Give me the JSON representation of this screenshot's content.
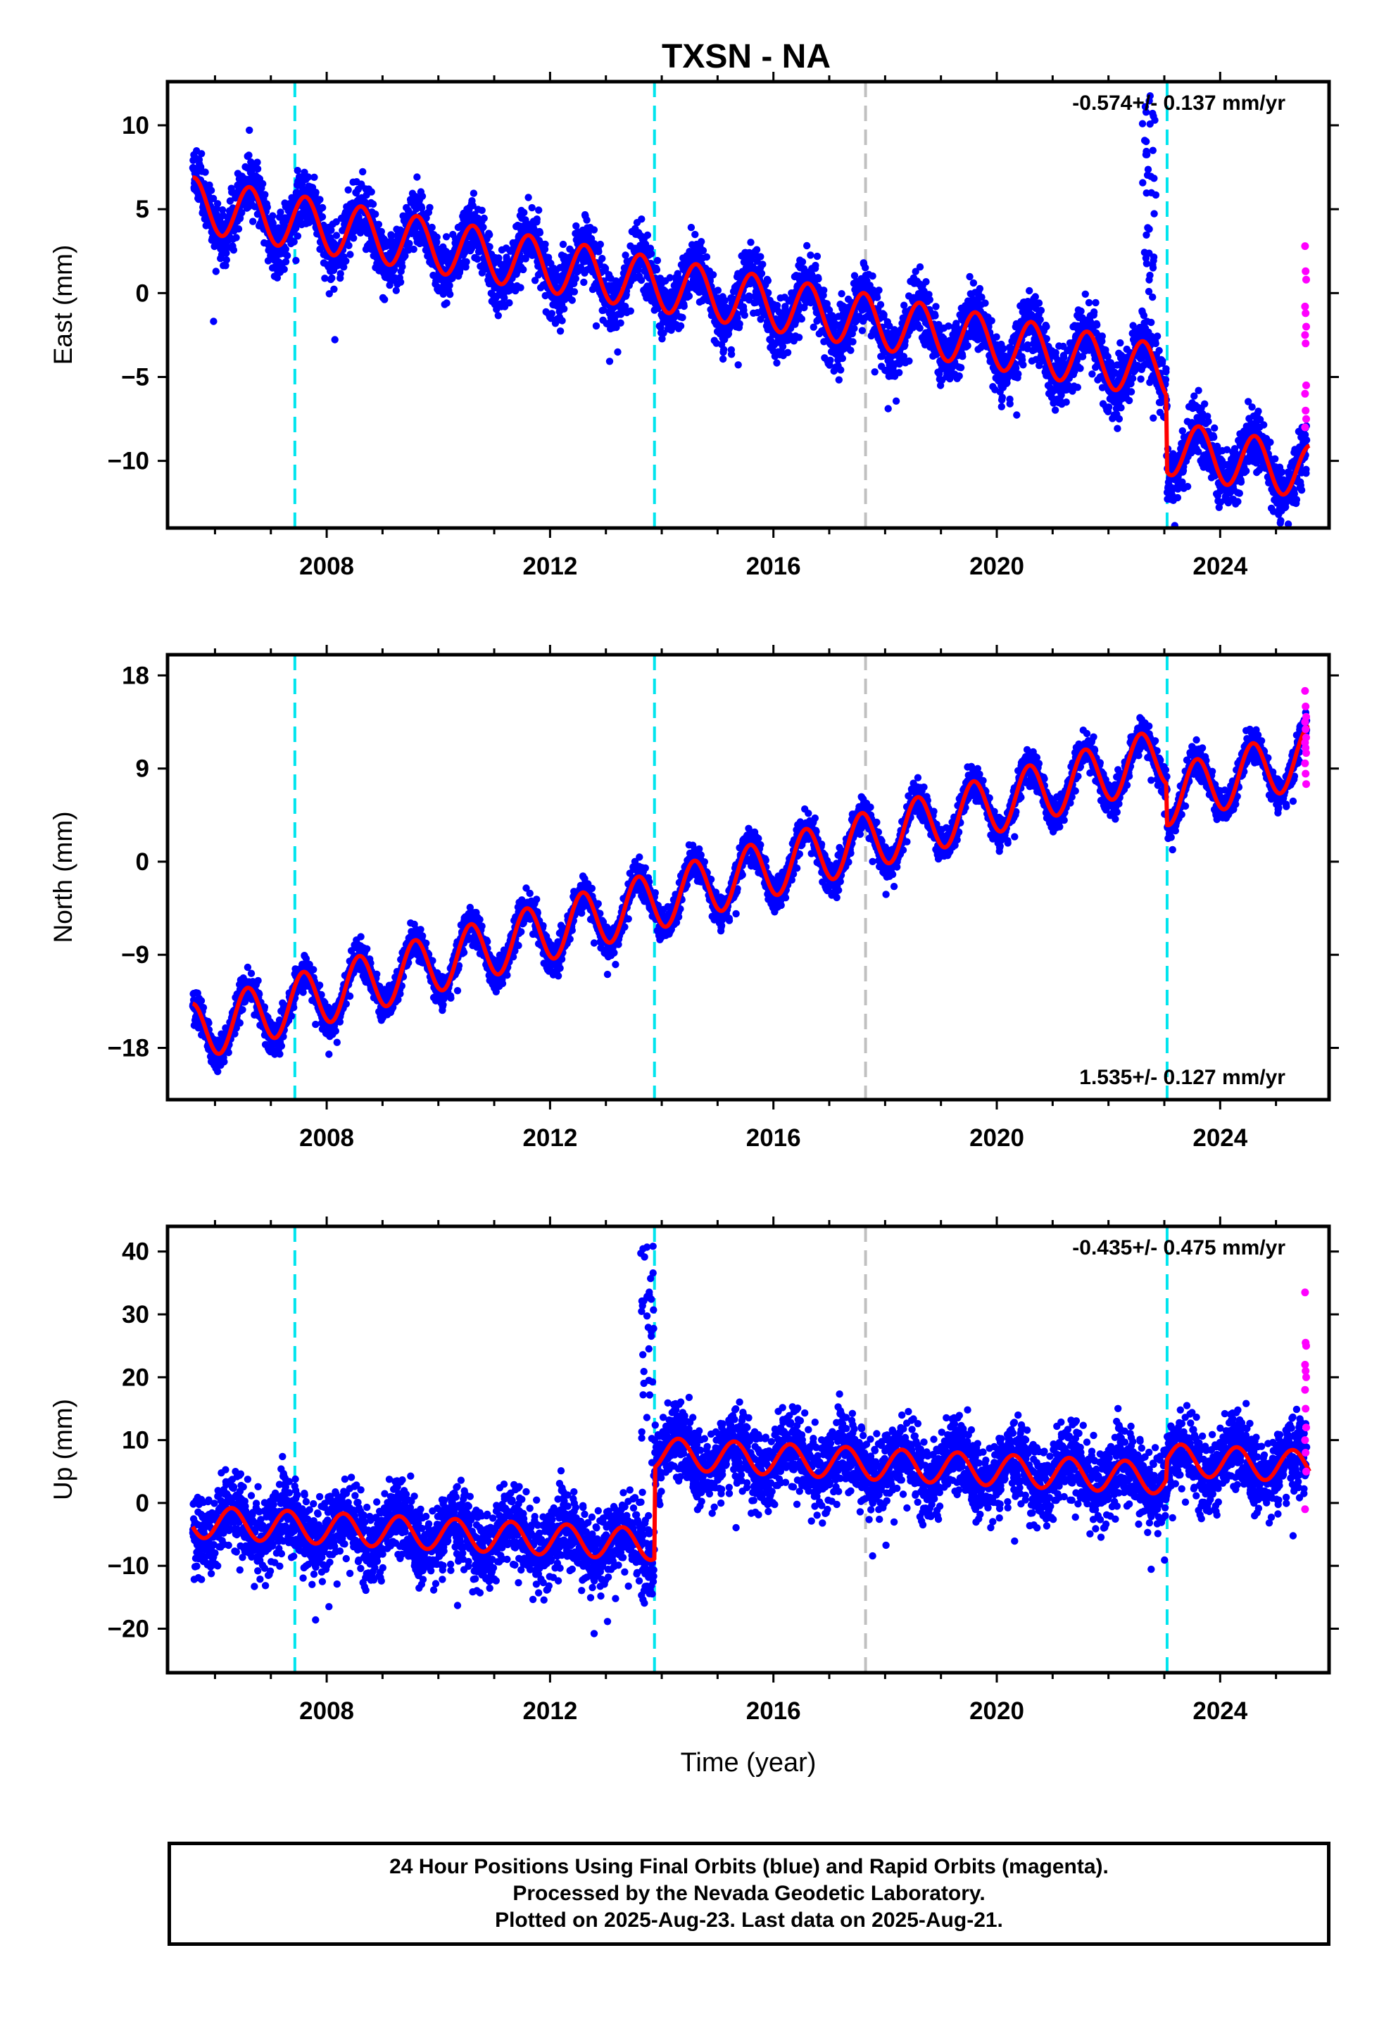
{
  "chart_data": {
    "type": "scatter",
    "title": "TXSN - NA",
    "xlabel": "Time (year)",
    "xlim": [
      2005.15,
      2025.95
    ],
    "x_ticks": [
      2008,
      2012,
      2016,
      2020,
      2024
    ],
    "event_lines": [
      {
        "x": 2007.43,
        "color": "#00e5ee",
        "style": "dashed"
      },
      {
        "x": 2013.87,
        "color": "#00e5ee",
        "style": "dashed"
      },
      {
        "x": 2017.65,
        "color": "#c0c0c0",
        "style": "dashed"
      },
      {
        "x": 2023.05,
        "color": "#00e5ee",
        "style": "dashed"
      }
    ],
    "series_colors": {
      "final_orbits": "#0000ff",
      "rapid_orbits": "#ff00ff",
      "model": "#ff0000"
    },
    "panels": [
      {
        "key": "east",
        "ylabel": "East (mm)",
        "ylim": [
          -14,
          12.6
        ],
        "y_ticks": [
          10,
          5,
          0,
          -5,
          -10
        ],
        "y_tick_labels": [
          "10",
          "5",
          "0",
          "−5",
          "−10"
        ],
        "rate_label": "-0.574+/- 0.137 mm/yr",
        "rate_pos": "top-right",
        "model": {
          "base": 5.3,
          "rate": -0.574,
          "amp": 1.6,
          "phase": 0.62,
          "steps": [
            {
              "x": 2023.05,
              "dy": -4.5
            }
          ],
          "noise": 1.25,
          "shift_after": []
        },
        "model_line": {
          "x": [
            2005.6,
            2025.6
          ],
          "y_range": [
            -11.0,
            6.5
          ]
        },
        "spike": {
          "x": 2022.85,
          "peak": 12
        },
        "rapid_points": [
          2.8,
          1.3,
          0.8,
          -0.8,
          -1.2,
          -2.0,
          -2.5,
          -3.0,
          -5.5,
          -6.0,
          -7.0,
          -7.5,
          -8.0
        ]
      },
      {
        "key": "north",
        "ylabel": "North (mm)",
        "ylim": [
          -23,
          20
        ],
        "y_ticks": [
          18,
          9,
          0,
          -9,
          -18
        ],
        "y_tick_labels": [
          "18",
          "9",
          "0",
          "−9",
          "−18"
        ],
        "rate_label": "1.535+/- 0.127 mm/yr",
        "rate_pos": "bottom-right",
        "model": {
          "base": -16.5,
          "rate": 1.535,
          "amp": 2.8,
          "phase": 0.58,
          "steps": [
            {
              "x": 2023.05,
              "dy": -4.0
            }
          ],
          "noise": 1.1,
          "shift_after": []
        },
        "model_line": {
          "x": [
            2005.6,
            2025.6
          ],
          "y_range": [
            -20.0,
            14.5
          ]
        },
        "spike": null,
        "rapid_points": [
          16.5,
          15.0,
          14.0,
          13.5,
          12.8,
          12.0,
          11.5,
          11.0,
          10.5,
          9.5,
          8.5,
          7.5
        ]
      },
      {
        "key": "up",
        "ylabel": "Up (mm)",
        "ylim": [
          -27,
          44
        ],
        "y_ticks": [
          40,
          30,
          20,
          10,
          0,
          -10,
          -20
        ],
        "y_tick_labels": [
          "40",
          "30",
          "20",
          "10",
          "0",
          "−10",
          "−20"
        ],
        "rate_label": "-0.435+/- 0.475 mm/yr",
        "rate_pos": "top-right",
        "model": {
          "base": -3.0,
          "rate": -0.435,
          "amp": 2.5,
          "phase": 0.3,
          "steps": [
            {
              "x": 2013.87,
              "dy": 14.5
            },
            {
              "x": 2023.05,
              "dy": 3.0
            }
          ],
          "noise": 4.3,
          "shift_after": []
        },
        "model_line": {
          "x": [
            2005.6,
            2025.6
          ],
          "y_range": [
            -11.0,
            7.5
          ]
        },
        "spike": {
          "x": 2013.87,
          "peak": 42
        },
        "rapid_points": [
          33.5,
          25.5,
          25.0,
          22.0,
          21.0,
          20.0,
          18.0,
          15.0,
          12.0,
          10.0,
          8.0,
          5.0,
          -1.0
        ]
      }
    ]
  },
  "footer": {
    "line1": "24 Hour Positions Using Final Orbits (blue) and Rapid Orbits (magenta).",
    "line2": "Processed by the Nevada Geodetic Laboratory.",
    "line3": "Plotted on 2025-Aug-23. Last data on 2025-Aug-21."
  }
}
